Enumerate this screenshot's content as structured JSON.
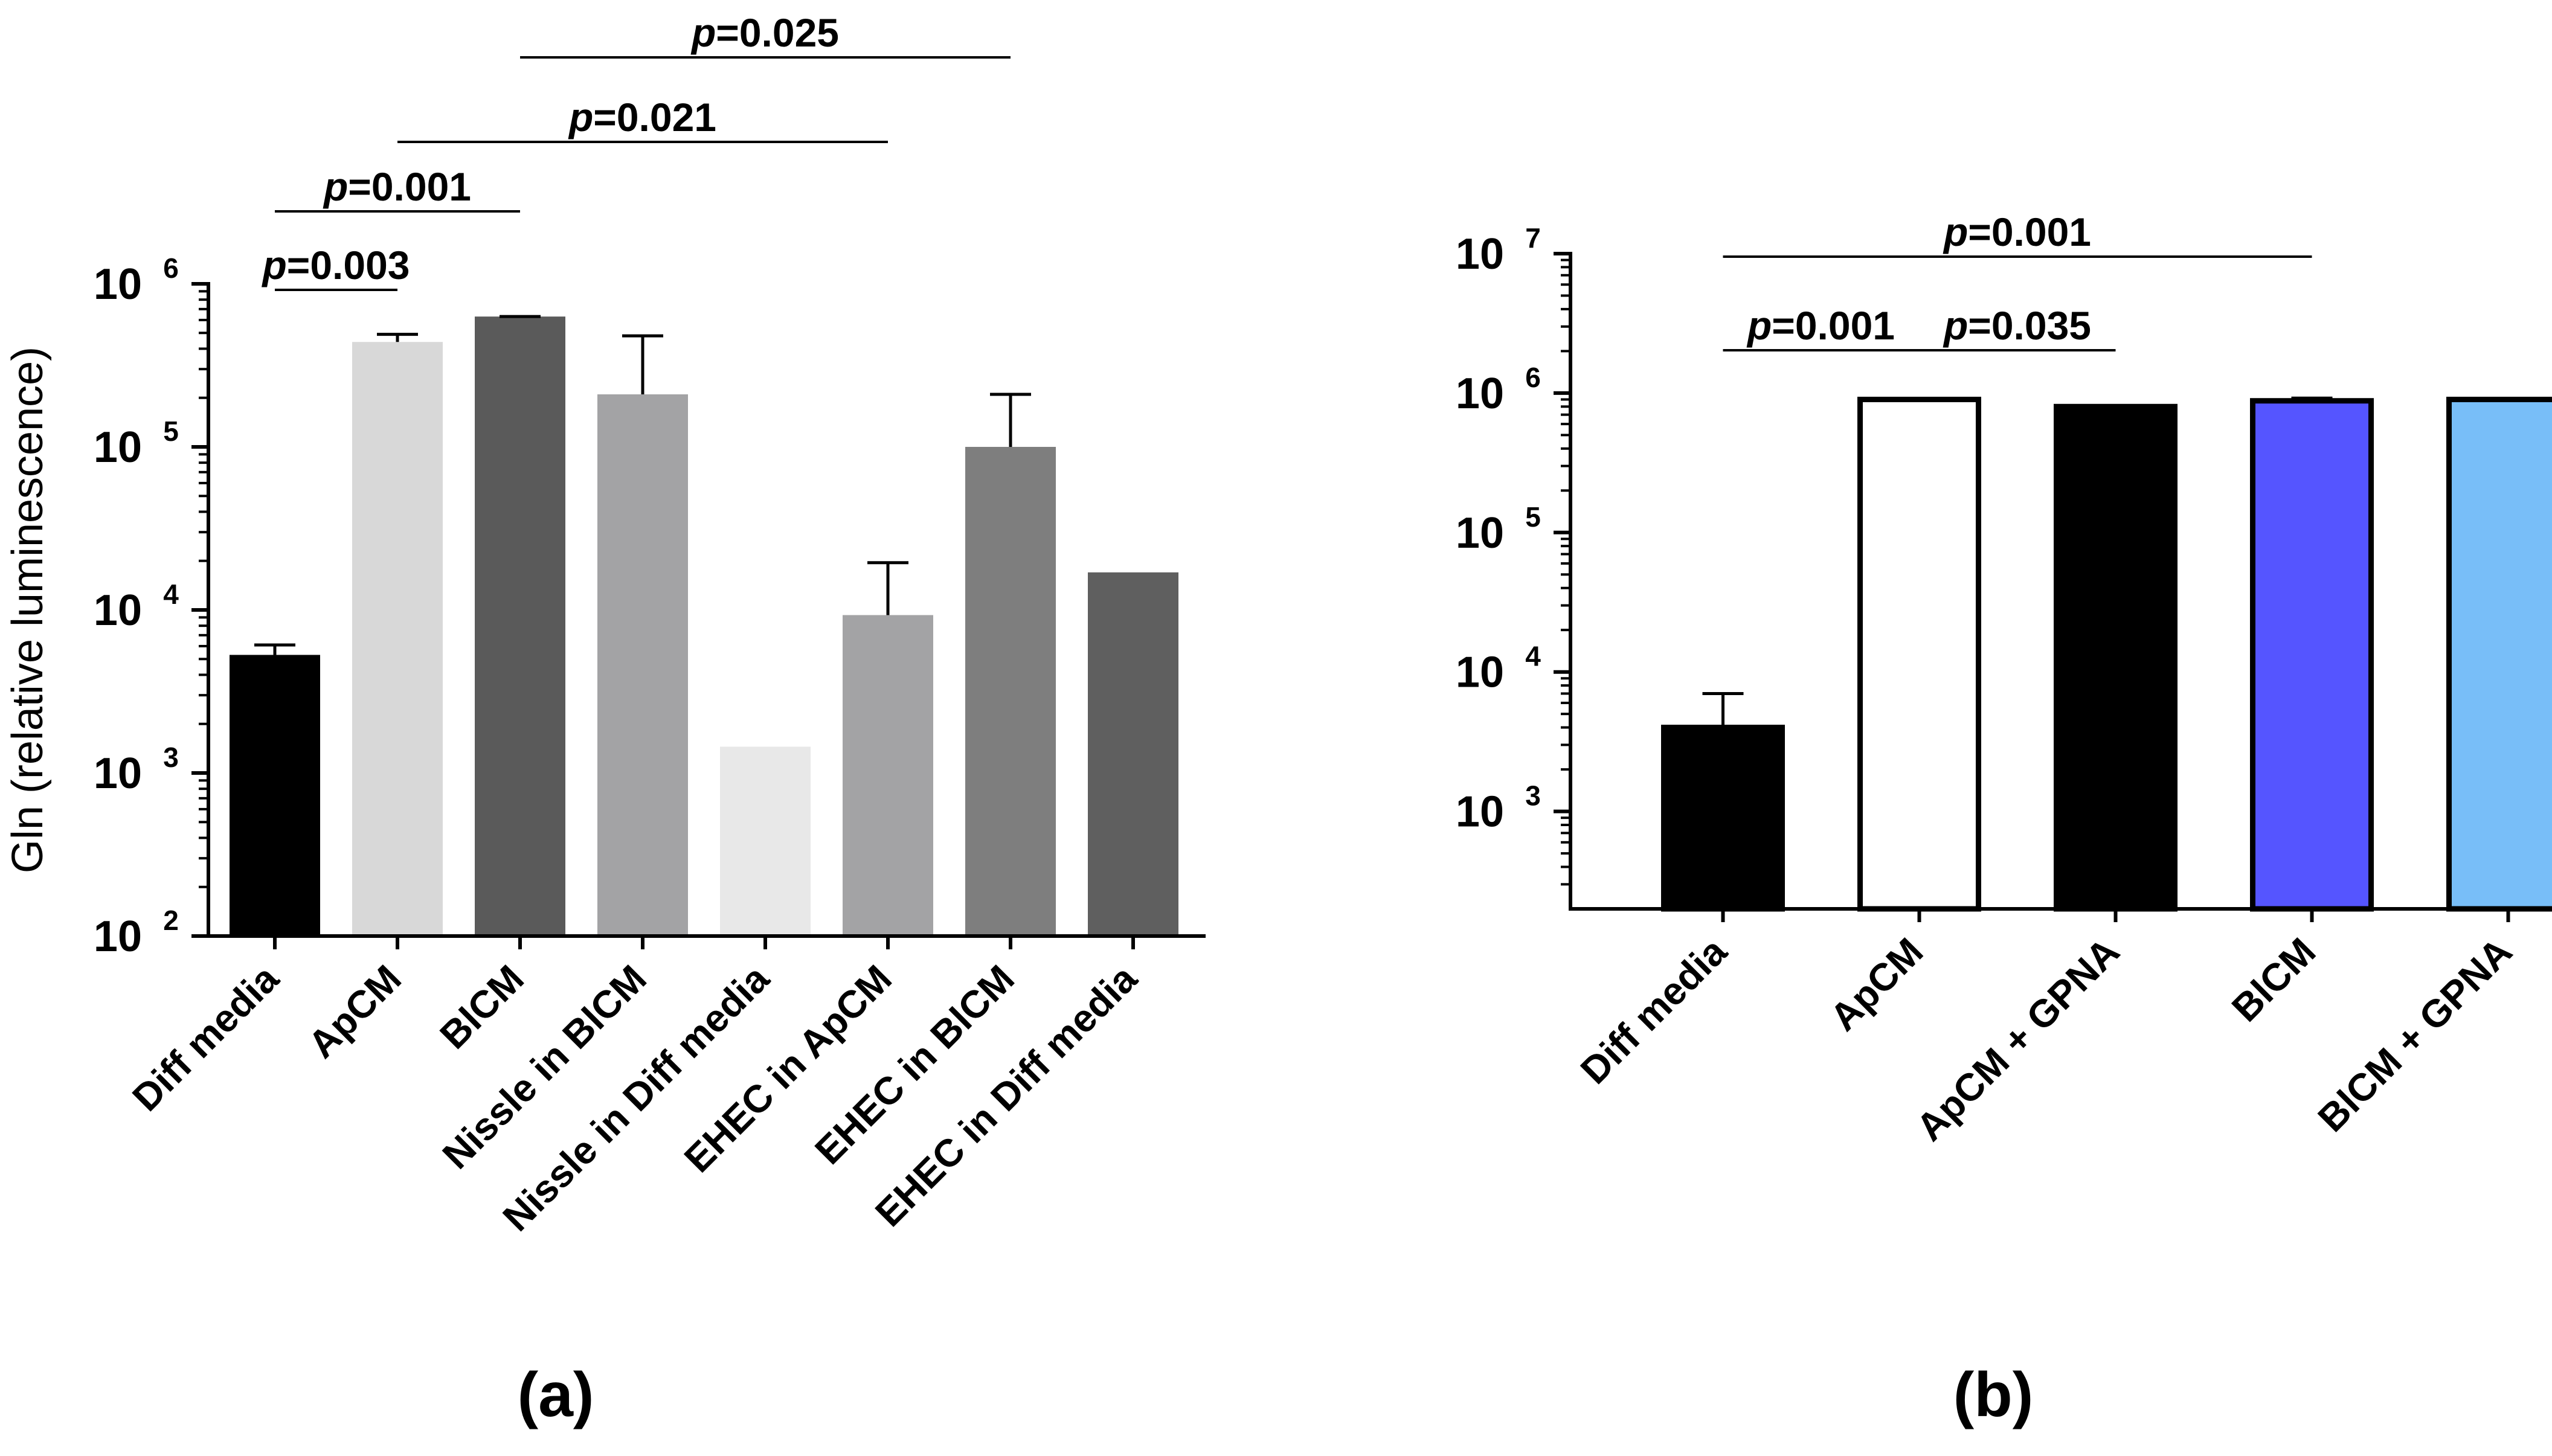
{
  "chart_data": [
    {
      "type": "bar",
      "panel": "(a)",
      "ylabel": "Gln (relative luminescence)",
      "yscale": "log",
      "ylim": [
        100,
        1000000
      ],
      "yticks": [
        {
          "base": "10",
          "exp": "2"
        },
        {
          "base": "10",
          "exp": "3"
        },
        {
          "base": "10",
          "exp": "4"
        },
        {
          "base": "10",
          "exp": "5"
        },
        {
          "base": "10",
          "exp": "6"
        }
      ],
      "bars": [
        {
          "label": "Diff media",
          "value": 5300,
          "err": 6100,
          "color": "#000000"
        },
        {
          "label": "ApCM",
          "value": 440000,
          "err": 490000,
          "color": "#d8d8d8"
        },
        {
          "label": "BlCM",
          "value": 630000,
          "err": 600000,
          "color": "#5a5a5a"
        },
        {
          "label": "Nissle in BlCM",
          "value": 210000,
          "err": 480000,
          "color": "#a3a3a5"
        },
        {
          "label": "Nissle in Diff media",
          "value": 1450,
          "err": null,
          "color": "#e8e8e8"
        },
        {
          "label": "EHEC in ApCM",
          "value": 9300,
          "err": 19500,
          "color": "#a3a3a5"
        },
        {
          "label": "EHEC in BlCM",
          "value": 100000,
          "err": 210000,
          "color": "#7e7e7e"
        },
        {
          "label": "EHEC in Diff media",
          "value": 17000,
          "err": null,
          "color": "#5f5f5f"
        }
      ],
      "comparisons": [
        {
          "from": 0,
          "to": 1,
          "p_prefix": "p",
          "p_value": "=0.003"
        },
        {
          "from": 0,
          "to": 2,
          "p_prefix": "p",
          "p_value": "=0.001"
        },
        {
          "from": 1,
          "to": 5,
          "p_prefix": "p",
          "p_value": "=0.021"
        },
        {
          "from": 2,
          "to": 6,
          "p_prefix": "p",
          "p_value": "=0.025"
        }
      ]
    },
    {
      "type": "bar",
      "panel": "(b)",
      "ylabel": "",
      "yscale": "log",
      "ylim": [
        200,
        10000000
      ],
      "yticks": [
        {
          "base": "10",
          "exp": "3"
        },
        {
          "base": "10",
          "exp": "4"
        },
        {
          "base": "10",
          "exp": "5"
        },
        {
          "base": "10",
          "exp": "6"
        },
        {
          "base": "10",
          "exp": "7"
        }
      ],
      "bars": [
        {
          "label": "Diff media",
          "value": 4000,
          "err": 7000,
          "color": "#000000",
          "stroke": "#000000"
        },
        {
          "label": "ApCM",
          "value": 900000,
          "err": null,
          "color": "#ffffff",
          "stroke": "#000000"
        },
        {
          "label": "ApCM + GPNA",
          "value": 800000,
          "err": null,
          "color": "#000000",
          "stroke": "#000000"
        },
        {
          "label": "BlCM",
          "value": 880000,
          "err": 920000,
          "color": "#5555ff",
          "stroke": "#000000"
        },
        {
          "label": "BlCM + GPNA",
          "value": 900000,
          "err": null,
          "color": "#78bef8",
          "stroke": "#000000"
        }
      ],
      "comparisons": [
        {
          "from": 0,
          "to": 1,
          "p_prefix": "p",
          "p_value": "=0.001"
        },
        {
          "from": 1,
          "to": 2,
          "p_prefix": "p",
          "p_value": "=0.035"
        },
        {
          "from": 0,
          "to": 3,
          "p_prefix": "p",
          "p_value": "=0.001"
        }
      ]
    }
  ]
}
